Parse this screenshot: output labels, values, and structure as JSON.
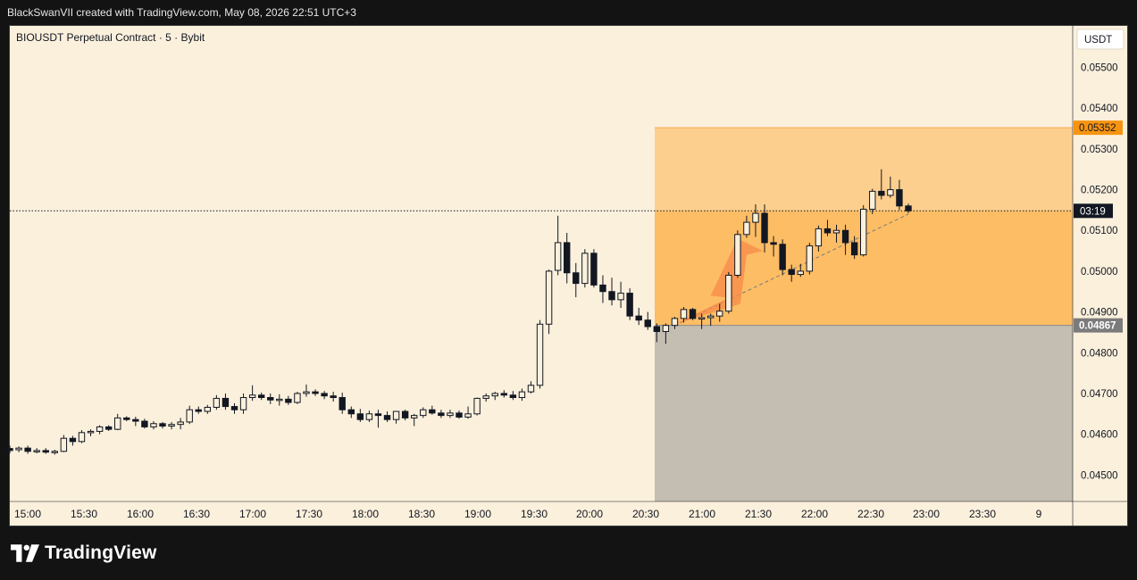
{
  "header": {
    "text": "BlackSwanVII created with TradingView.com, May 08, 2026 22:51 UTC+3"
  },
  "legend": {
    "text": "BIOUSDT Perpetual Contract · 5 · Bybit"
  },
  "footer": {
    "brand": "TradingView"
  },
  "colors": {
    "candle": "#131722",
    "profit_zone": "#fdb44f",
    "stop_zone": "#c4bdb2",
    "target_label": "#f79410",
    "entry_label": "#7b7b7b",
    "arrow": "#f7894a"
  },
  "chart_data": {
    "type": "candlestick",
    "unit": "USDT",
    "x_ticks": [
      "15:00",
      "15:30",
      "16:00",
      "16:30",
      "17:00",
      "17:30",
      "18:00",
      "18:30",
      "19:00",
      "19:30",
      "20:00",
      "20:30",
      "21:00",
      "21:30",
      "22:00",
      "22:30",
      "23:00",
      "23:30",
      "9"
    ],
    "y_ticks": [
      "0.05500",
      "0.05400",
      "0.05300",
      "0.05200",
      "0.05100",
      "0.05000",
      "0.04900",
      "0.04800",
      "0.04700",
      "0.04600",
      "0.04500"
    ],
    "ylim": [
      0.04435,
      0.05604
    ],
    "candles": [
      {
        "o": 0.04565,
        "h": 0.04572,
        "l": 0.04553,
        "c": 0.0456
      },
      {
        "o": 0.04562,
        "h": 0.0457,
        "l": 0.04556,
        "c": 0.04566
      },
      {
        "o": 0.04566,
        "h": 0.04572,
        "l": 0.04552,
        "c": 0.04558
      },
      {
        "o": 0.04558,
        "h": 0.04566,
        "l": 0.04553,
        "c": 0.0456
      },
      {
        "o": 0.0456,
        "h": 0.04566,
        "l": 0.04552,
        "c": 0.04556
      },
      {
        "o": 0.04556,
        "h": 0.04562,
        "l": 0.0455,
        "c": 0.04558
      },
      {
        "o": 0.04558,
        "h": 0.04598,
        "l": 0.04556,
        "c": 0.0459
      },
      {
        "o": 0.0459,
        "h": 0.04596,
        "l": 0.04572,
        "c": 0.04582
      },
      {
        "o": 0.04582,
        "h": 0.0461,
        "l": 0.04578,
        "c": 0.04604
      },
      {
        "o": 0.04604,
        "h": 0.04612,
        "l": 0.04595,
        "c": 0.04607
      },
      {
        "o": 0.04607,
        "h": 0.04622,
        "l": 0.046,
        "c": 0.04618
      },
      {
        "o": 0.04618,
        "h": 0.04622,
        "l": 0.04608,
        "c": 0.04612
      },
      {
        "o": 0.04612,
        "h": 0.0465,
        "l": 0.0461,
        "c": 0.0464
      },
      {
        "o": 0.0464,
        "h": 0.04644,
        "l": 0.04632,
        "c": 0.04636
      },
      {
        "o": 0.04636,
        "h": 0.04643,
        "l": 0.0462,
        "c": 0.04632
      },
      {
        "o": 0.04632,
        "h": 0.04638,
        "l": 0.04614,
        "c": 0.04618
      },
      {
        "o": 0.04618,
        "h": 0.04632,
        "l": 0.04612,
        "c": 0.04626
      },
      {
        "o": 0.04626,
        "h": 0.0463,
        "l": 0.04614,
        "c": 0.0462
      },
      {
        "o": 0.0462,
        "h": 0.0463,
        "l": 0.04612,
        "c": 0.04624
      },
      {
        "o": 0.04624,
        "h": 0.0464,
        "l": 0.04612,
        "c": 0.0463
      },
      {
        "o": 0.0463,
        "h": 0.0467,
        "l": 0.04625,
        "c": 0.0466
      },
      {
        "o": 0.0466,
        "h": 0.04668,
        "l": 0.0465,
        "c": 0.04656
      },
      {
        "o": 0.04656,
        "h": 0.04672,
        "l": 0.0465,
        "c": 0.04666
      },
      {
        "o": 0.04666,
        "h": 0.04696,
        "l": 0.0466,
        "c": 0.04688
      },
      {
        "o": 0.04688,
        "h": 0.047,
        "l": 0.0466,
        "c": 0.04668
      },
      {
        "o": 0.04668,
        "h": 0.04676,
        "l": 0.0465,
        "c": 0.0466
      },
      {
        "o": 0.0466,
        "h": 0.047,
        "l": 0.0465,
        "c": 0.0469
      },
      {
        "o": 0.0469,
        "h": 0.0472,
        "l": 0.04682,
        "c": 0.04696
      },
      {
        "o": 0.04696,
        "h": 0.04702,
        "l": 0.04684,
        "c": 0.0469
      },
      {
        "o": 0.0469,
        "h": 0.047,
        "l": 0.04674,
        "c": 0.04684
      },
      {
        "o": 0.04684,
        "h": 0.04698,
        "l": 0.0467,
        "c": 0.04686
      },
      {
        "o": 0.04686,
        "h": 0.04694,
        "l": 0.04672,
        "c": 0.04678
      },
      {
        "o": 0.04678,
        "h": 0.04704,
        "l": 0.04674,
        "c": 0.047
      },
      {
        "o": 0.047,
        "h": 0.04722,
        "l": 0.04692,
        "c": 0.04704
      },
      {
        "o": 0.04704,
        "h": 0.0471,
        "l": 0.04694,
        "c": 0.047
      },
      {
        "o": 0.047,
        "h": 0.04706,
        "l": 0.04686,
        "c": 0.04694
      },
      {
        "o": 0.04694,
        "h": 0.04704,
        "l": 0.0468,
        "c": 0.0469
      },
      {
        "o": 0.0469,
        "h": 0.04702,
        "l": 0.0465,
        "c": 0.0466
      },
      {
        "o": 0.0466,
        "h": 0.04668,
        "l": 0.0464,
        "c": 0.0465
      },
      {
        "o": 0.0465,
        "h": 0.04662,
        "l": 0.0463,
        "c": 0.04636
      },
      {
        "o": 0.04636,
        "h": 0.04658,
        "l": 0.0463,
        "c": 0.0465
      },
      {
        "o": 0.0465,
        "h": 0.0466,
        "l": 0.04616,
        "c": 0.04646
      },
      {
        "o": 0.04646,
        "h": 0.04656,
        "l": 0.0463,
        "c": 0.04636
      },
      {
        "o": 0.04636,
        "h": 0.0465,
        "l": 0.04626,
        "c": 0.04656
      },
      {
        "o": 0.04656,
        "h": 0.0466,
        "l": 0.04634,
        "c": 0.0464
      },
      {
        "o": 0.0464,
        "h": 0.0465,
        "l": 0.0462,
        "c": 0.04646
      },
      {
        "o": 0.04646,
        "h": 0.04666,
        "l": 0.0464,
        "c": 0.0466
      },
      {
        "o": 0.0466,
        "h": 0.0467,
        "l": 0.04648,
        "c": 0.04652
      },
      {
        "o": 0.04652,
        "h": 0.0466,
        "l": 0.0464,
        "c": 0.04646
      },
      {
        "o": 0.04646,
        "h": 0.0466,
        "l": 0.0464,
        "c": 0.04652
      },
      {
        "o": 0.04652,
        "h": 0.04658,
        "l": 0.04638,
        "c": 0.04642
      },
      {
        "o": 0.04642,
        "h": 0.04668,
        "l": 0.04638,
        "c": 0.0465
      },
      {
        "o": 0.0465,
        "h": 0.0469,
        "l": 0.04646,
        "c": 0.04688
      },
      {
        "o": 0.04688,
        "h": 0.047,
        "l": 0.0468,
        "c": 0.04694
      },
      {
        "o": 0.04694,
        "h": 0.04704,
        "l": 0.04684,
        "c": 0.047
      },
      {
        "o": 0.047,
        "h": 0.04708,
        "l": 0.0469,
        "c": 0.04696
      },
      {
        "o": 0.04696,
        "h": 0.04706,
        "l": 0.04684,
        "c": 0.0469
      },
      {
        "o": 0.0469,
        "h": 0.04712,
        "l": 0.04682,
        "c": 0.04704
      },
      {
        "o": 0.04704,
        "h": 0.0473,
        "l": 0.047,
        "c": 0.0472
      },
      {
        "o": 0.0472,
        "h": 0.0488,
        "l": 0.04712,
        "c": 0.0487
      },
      {
        "o": 0.0487,
        "h": 0.05004,
        "l": 0.04846,
        "c": 0.05
      },
      {
        "o": 0.05002,
        "h": 0.05136,
        "l": 0.0499,
        "c": 0.0507
      },
      {
        "o": 0.0507,
        "h": 0.05094,
        "l": 0.0497,
        "c": 0.04996
      },
      {
        "o": 0.04996,
        "h": 0.0502,
        "l": 0.04936,
        "c": 0.0497
      },
      {
        "o": 0.0497,
        "h": 0.05054,
        "l": 0.0496,
        "c": 0.05044
      },
      {
        "o": 0.05044,
        "h": 0.05054,
        "l": 0.0496,
        "c": 0.04966
      },
      {
        "o": 0.04966,
        "h": 0.0499,
        "l": 0.04922,
        "c": 0.0495
      },
      {
        "o": 0.0495,
        "h": 0.04984,
        "l": 0.04916,
        "c": 0.0493
      },
      {
        "o": 0.0493,
        "h": 0.04974,
        "l": 0.0491,
        "c": 0.04946
      },
      {
        "o": 0.04946,
        "h": 0.04958,
        "l": 0.0488,
        "c": 0.0489
      },
      {
        "o": 0.0489,
        "h": 0.0491,
        "l": 0.04868,
        "c": 0.0488
      },
      {
        "o": 0.0488,
        "h": 0.049,
        "l": 0.04856,
        "c": 0.04864
      },
      {
        "o": 0.04864,
        "h": 0.04872,
        "l": 0.04826,
        "c": 0.04852
      },
      {
        "o": 0.04852,
        "h": 0.04872,
        "l": 0.04822,
        "c": 0.04867
      },
      {
        "o": 0.04867,
        "h": 0.04888,
        "l": 0.04858,
        "c": 0.04884
      },
      {
        "o": 0.04884,
        "h": 0.04912,
        "l": 0.04874,
        "c": 0.04906
      },
      {
        "o": 0.04906,
        "h": 0.0491,
        "l": 0.0488,
        "c": 0.04884
      },
      {
        "o": 0.04884,
        "h": 0.04896,
        "l": 0.04858,
        "c": 0.04886
      },
      {
        "o": 0.04886,
        "h": 0.04896,
        "l": 0.04866,
        "c": 0.0489
      },
      {
        "o": 0.0489,
        "h": 0.0492,
        "l": 0.04876,
        "c": 0.04902
      },
      {
        "o": 0.04902,
        "h": 0.04998,
        "l": 0.04896,
        "c": 0.0499
      },
      {
        "o": 0.0499,
        "h": 0.051,
        "l": 0.04984,
        "c": 0.0509
      },
      {
        "o": 0.0509,
        "h": 0.05136,
        "l": 0.05082,
        "c": 0.0512
      },
      {
        "o": 0.0512,
        "h": 0.05164,
        "l": 0.05084,
        "c": 0.05142
      },
      {
        "o": 0.05142,
        "h": 0.05164,
        "l": 0.05046,
        "c": 0.0507
      },
      {
        "o": 0.0507,
        "h": 0.05086,
        "l": 0.05036,
        "c": 0.05066
      },
      {
        "o": 0.05066,
        "h": 0.05078,
        "l": 0.0499,
        "c": 0.05004
      },
      {
        "o": 0.05004,
        "h": 0.05016,
        "l": 0.04974,
        "c": 0.04992
      },
      {
        "o": 0.04992,
        "h": 0.05018,
        "l": 0.04986,
        "c": 0.05
      },
      {
        "o": 0.05,
        "h": 0.0507,
        "l": 0.04992,
        "c": 0.05062
      },
      {
        "o": 0.05062,
        "h": 0.05112,
        "l": 0.05048,
        "c": 0.05104
      },
      {
        "o": 0.05104,
        "h": 0.05126,
        "l": 0.05086,
        "c": 0.05094
      },
      {
        "o": 0.05094,
        "h": 0.05114,
        "l": 0.0507,
        "c": 0.051
      },
      {
        "o": 0.051,
        "h": 0.05114,
        "l": 0.0504,
        "c": 0.0507
      },
      {
        "o": 0.0507,
        "h": 0.05086,
        "l": 0.0503,
        "c": 0.0504
      },
      {
        "o": 0.0504,
        "h": 0.05162,
        "l": 0.05036,
        "c": 0.05152
      },
      {
        "o": 0.05152,
        "h": 0.05202,
        "l": 0.0514,
        "c": 0.05196
      },
      {
        "o": 0.05196,
        "h": 0.0525,
        "l": 0.05176,
        "c": 0.05186
      },
      {
        "o": 0.05186,
        "h": 0.05232,
        "l": 0.0518,
        "c": 0.052
      },
      {
        "o": 0.052,
        "h": 0.05224,
        "l": 0.0515,
        "c": 0.0516
      },
      {
        "o": 0.0516,
        "h": 0.05166,
        "l": 0.05142,
        "c": 0.05148
      }
    ],
    "position": {
      "target": 0.05352,
      "entry": 0.04867,
      "target_label": "0.05352",
      "entry_label": "0.04867"
    },
    "current_price": 0.05148,
    "countdown_label": "03:19",
    "unit_label": "USDT"
  }
}
